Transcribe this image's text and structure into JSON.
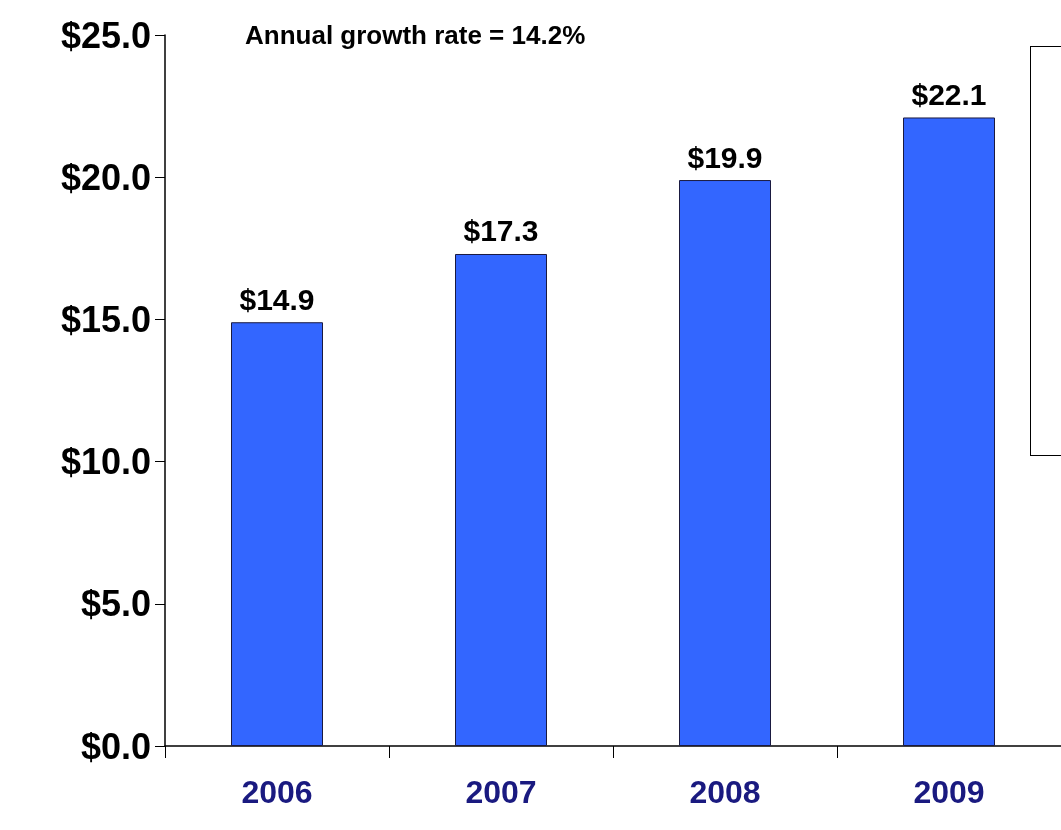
{
  "chart_data": {
    "type": "bar",
    "categories": [
      "2006",
      "2007",
      "2008",
      "2009"
    ],
    "values": [
      14.9,
      17.3,
      19.9,
      22.1
    ],
    "value_labels": [
      "$14.9",
      "$17.3",
      "$19.9",
      "$22.1"
    ],
    "color": "#3366ff",
    "ylim": [
      0,
      25
    ],
    "yticks": [
      {
        "value": 0,
        "label": "$0.0"
      },
      {
        "value": 5,
        "label": "$5.0"
      },
      {
        "value": 10,
        "label": "$10.0"
      },
      {
        "value": 15,
        "label": "$15.0"
      },
      {
        "value": 20,
        "label": "$20.0"
      },
      {
        "value": 25,
        "label": "$25.0"
      }
    ],
    "annotations": [
      "Annual growth rate = 14.2%"
    ]
  }
}
